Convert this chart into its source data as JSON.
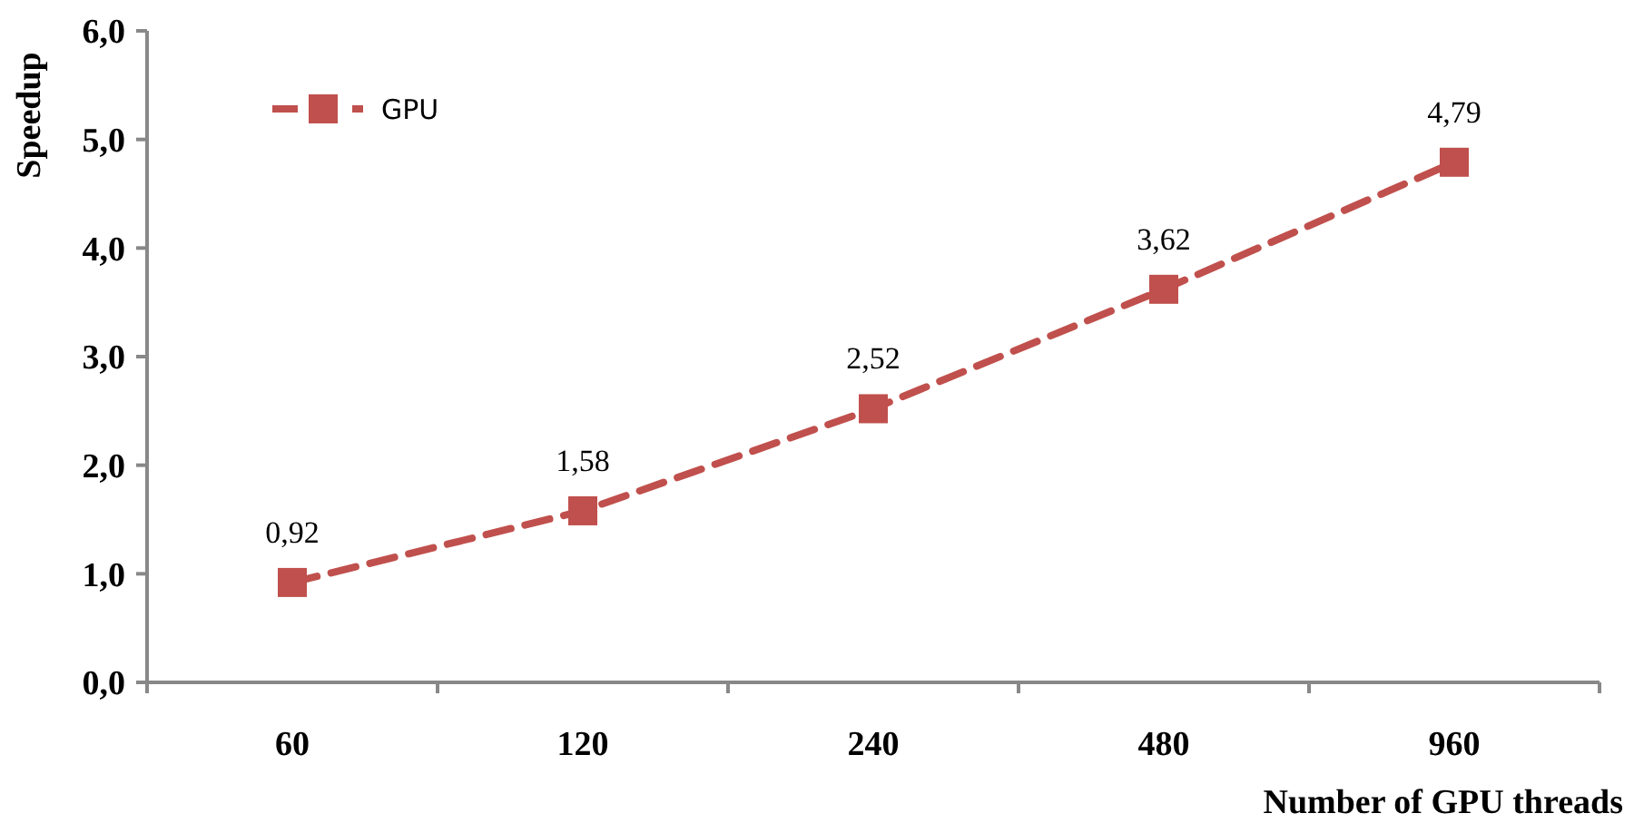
{
  "chart_data": {
    "type": "line",
    "xlabel": "Number of GPU threads",
    "ylabel": "Speedup",
    "categories": [
      "60",
      "120",
      "240",
      "480",
      "960"
    ],
    "series": [
      {
        "name": "GPU",
        "color": "#c0504d",
        "values": [
          0.92,
          1.58,
          2.52,
          3.62,
          4.79
        ],
        "value_labels": [
          "0,92",
          "1,58",
          "2,52",
          "3,62",
          "4,79"
        ]
      }
    ],
    "ylim": [
      0,
      6
    ],
    "yticks": [
      {
        "value": 0,
        "label": "0,0"
      },
      {
        "value": 1,
        "label": "1,0"
      },
      {
        "value": 2,
        "label": "2,0"
      },
      {
        "value": 3,
        "label": "3,0"
      },
      {
        "value": 4,
        "label": "4,0"
      },
      {
        "value": 5,
        "label": "5,0"
      },
      {
        "value": 6,
        "label": "6,0"
      }
    ],
    "grid": false,
    "legend": "top left",
    "marker": "square",
    "line_style": "dashed"
  }
}
